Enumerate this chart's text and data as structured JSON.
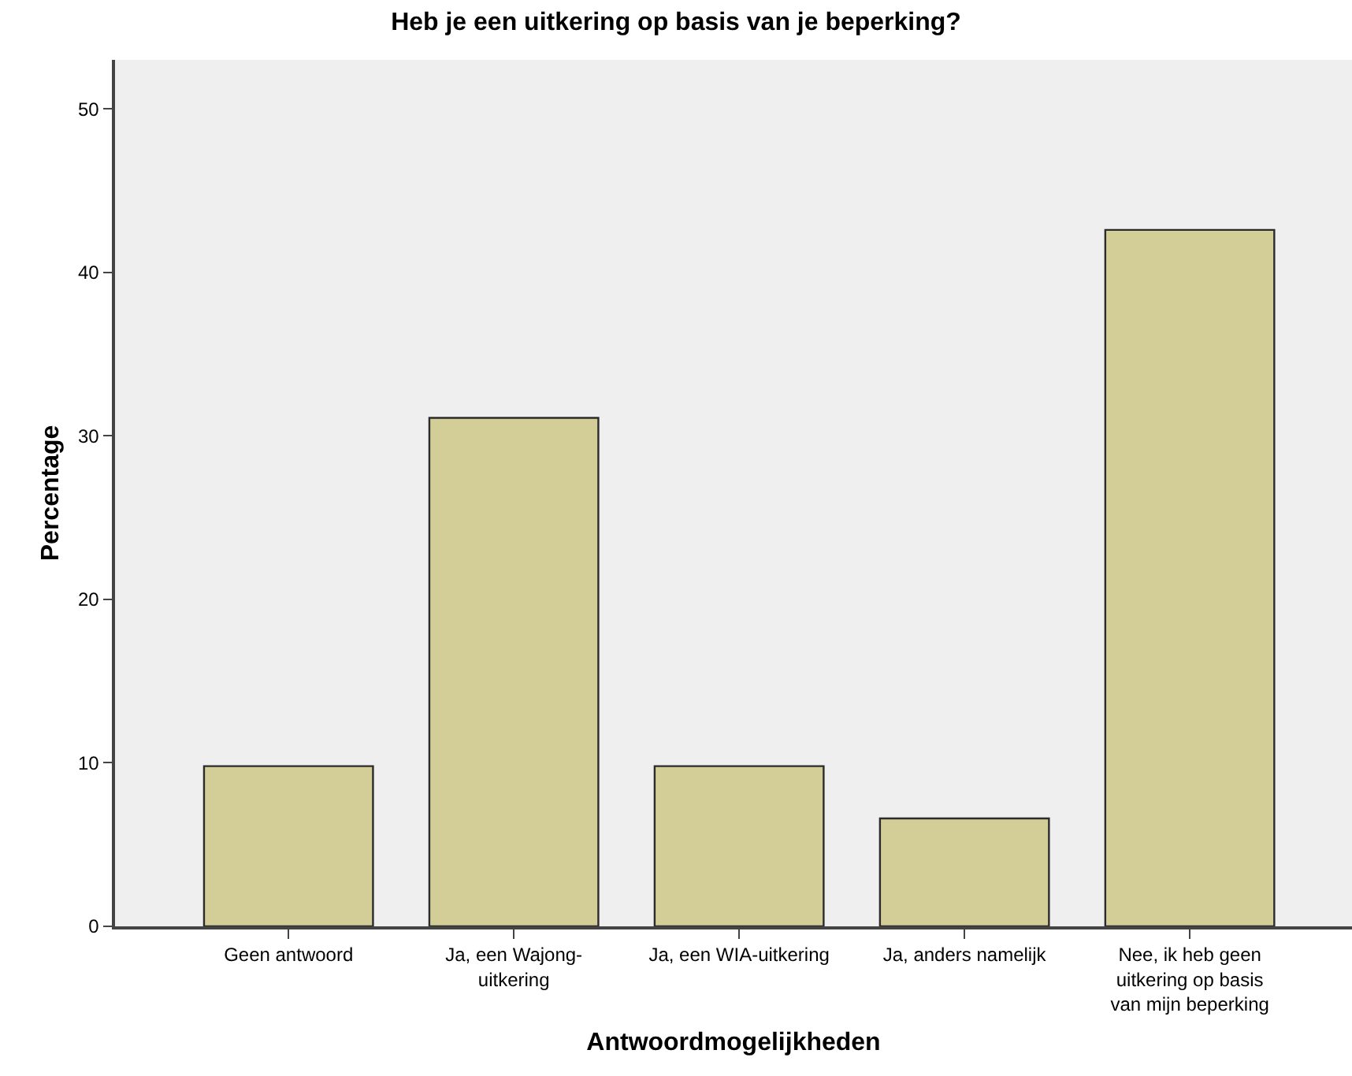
{
  "chart_data": {
    "type": "bar",
    "title": "Heb je een uitkering op basis van je beperking?",
    "xlabel": "Antwoordmogelijkheden",
    "ylabel": "Percentage",
    "categories": [
      "Geen antwoord",
      "Ja, een Wajong-uitkering",
      "Ja, een WIA-uitkering",
      "Ja, anders namelijk",
      "Nee, ik heb geen uitkering op basis van mijn beperking"
    ],
    "values": [
      9.8,
      31.1,
      9.8,
      6.6,
      42.6
    ],
    "color": "#d3ce98",
    "ylim": [
      0,
      53
    ],
    "yticks": [
      0,
      10,
      20,
      30,
      40,
      50
    ],
    "grid": false
  }
}
